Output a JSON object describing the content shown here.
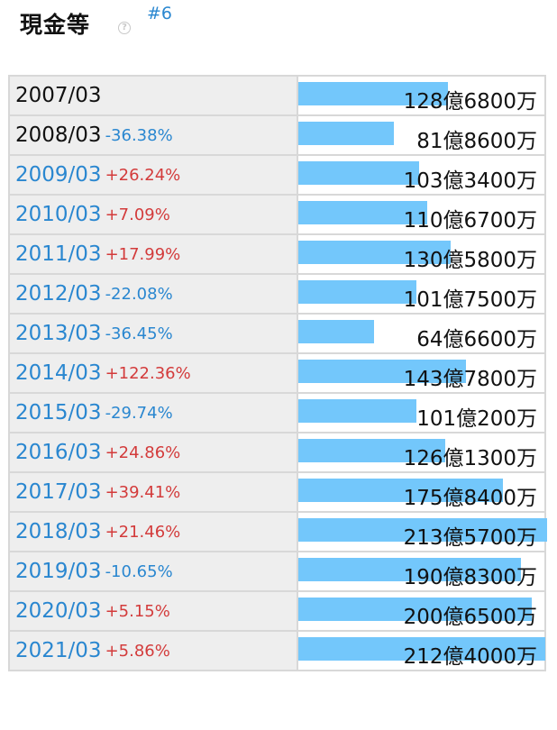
{
  "header": {
    "title": "現金等",
    "help_icon": "question-circle-icon",
    "rank": "#6"
  },
  "colors": {
    "bar": "#73c7fb",
    "link": "#2a87d0",
    "positive": "#d33b3b",
    "negative": "#2a87d0"
  },
  "rows": [
    {
      "year": "2007/03",
      "change": "",
      "amount": "128億6800万",
      "value": 128.68,
      "is_link": false
    },
    {
      "year": "2008/03",
      "change": "-36.38%",
      "amount": "81億8600万",
      "value": 81.86,
      "is_link": false
    },
    {
      "year": "2009/03",
      "change": "+26.24%",
      "amount": "103億3400万",
      "value": 103.34,
      "is_link": true
    },
    {
      "year": "2010/03",
      "change": "+7.09%",
      "amount": "110億6700万",
      "value": 110.67,
      "is_link": true
    },
    {
      "year": "2011/03",
      "change": "+17.99%",
      "amount": "130億5800万",
      "value": 130.58,
      "is_link": true
    },
    {
      "year": "2012/03",
      "change": "-22.08%",
      "amount": "101億7500万",
      "value": 101.75,
      "is_link": true
    },
    {
      "year": "2013/03",
      "change": "-36.45%",
      "amount": "64億6600万",
      "value": 64.66,
      "is_link": true
    },
    {
      "year": "2014/03",
      "change": "+122.36%",
      "amount": "143億7800万",
      "value": 143.78,
      "is_link": true
    },
    {
      "year": "2015/03",
      "change": "-29.74%",
      "amount": "101億200万",
      "value": 101.02,
      "is_link": true
    },
    {
      "year": "2016/03",
      "change": "+24.86%",
      "amount": "126億1300万",
      "value": 126.13,
      "is_link": true
    },
    {
      "year": "2017/03",
      "change": "+39.41%",
      "amount": "175億8400万",
      "value": 175.84,
      "is_link": true
    },
    {
      "year": "2018/03",
      "change": "+21.46%",
      "amount": "213億5700万",
      "value": 213.57,
      "is_link": true
    },
    {
      "year": "2019/03",
      "change": "-10.65%",
      "amount": "190億8300万",
      "value": 190.83,
      "is_link": true
    },
    {
      "year": "2020/03",
      "change": "+5.15%",
      "amount": "200億6500万",
      "value": 200.65,
      "is_link": true
    },
    {
      "year": "2021/03",
      "change": "+5.86%",
      "amount": "212億4000万",
      "value": 212.4,
      "is_link": true
    }
  ]
}
